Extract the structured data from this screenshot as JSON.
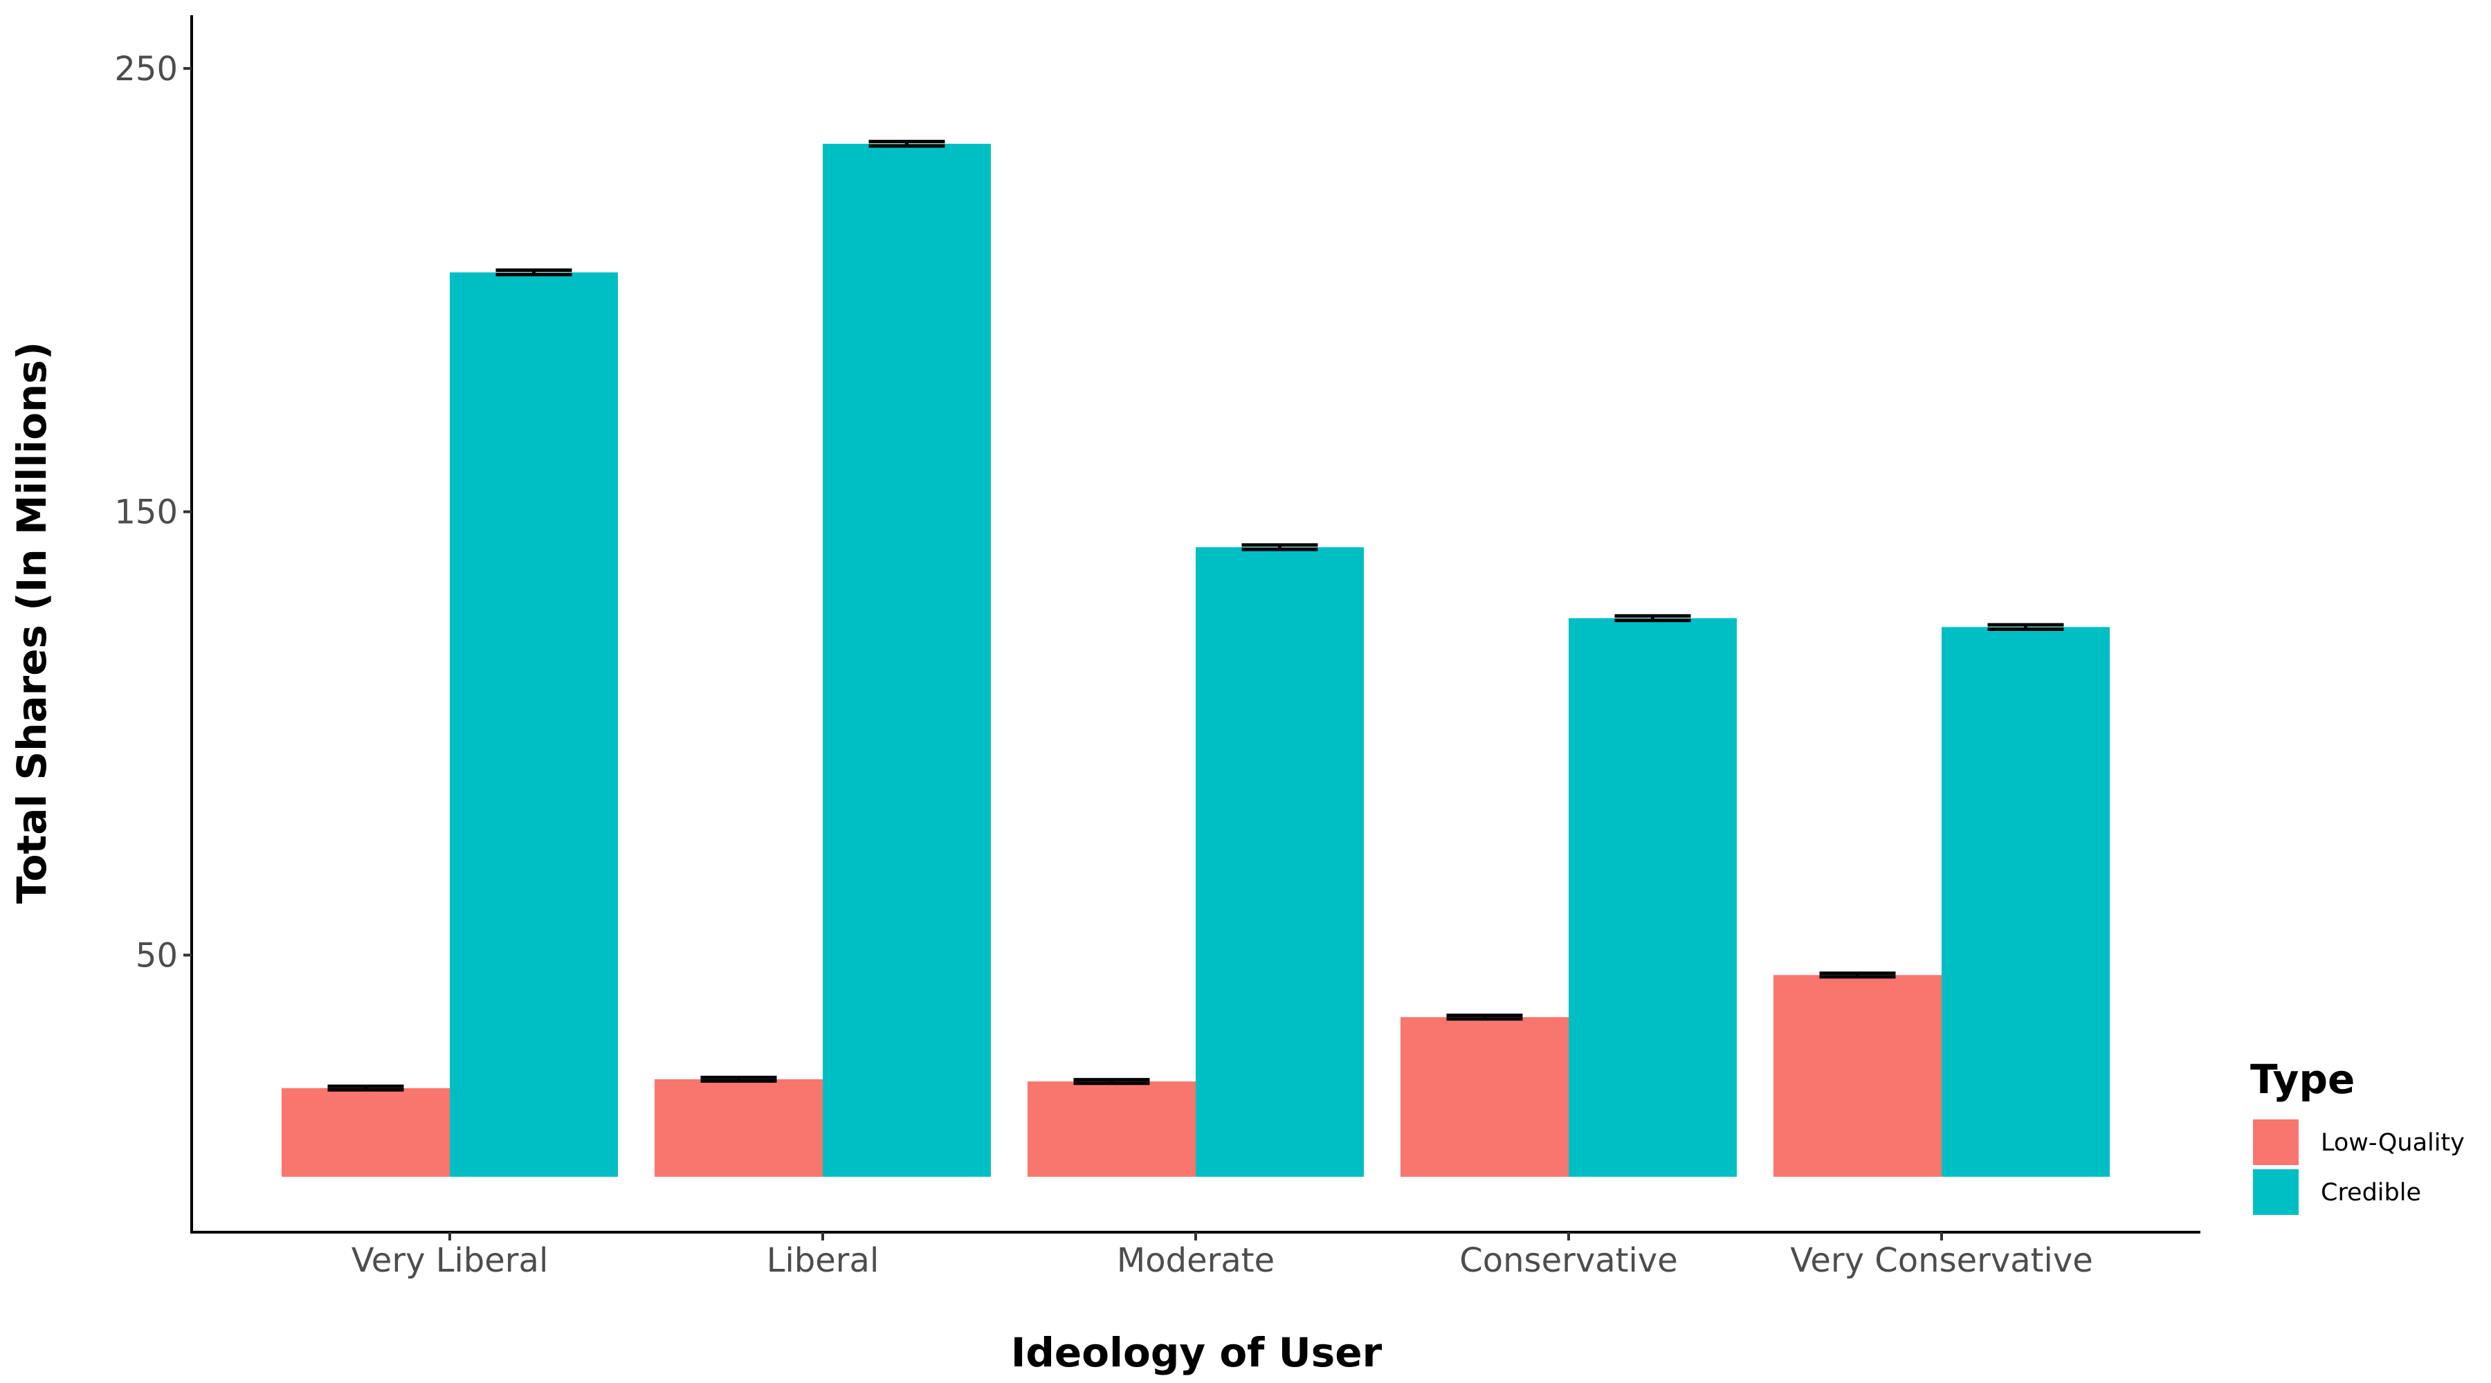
{
  "chart_data": {
    "type": "bar",
    "title": "",
    "xlabel": "Ideology of User",
    "ylabel": "Total Shares (In Millions)",
    "categories": [
      "Very Liberal",
      "Liberal",
      "Moderate",
      "Conservative",
      "Very Conservative"
    ],
    "series": [
      {
        "name": "Low-Quality",
        "color": "#F8766D",
        "values": [
          20,
          22,
          21.5,
          36,
          45.5
        ],
        "error_low": [
          19.6,
          21.6,
          21.1,
          35.6,
          45.1
        ],
        "error_high": [
          20.4,
          22.4,
          21.9,
          36.4,
          45.9
        ]
      },
      {
        "name": "Credible",
        "color": "#00BFC4",
        "values": [
          204,
          233,
          142,
          126,
          124
        ],
        "error_low": [
          203.5,
          232.5,
          141.5,
          125.5,
          123.5
        ],
        "error_high": [
          204.5,
          233.5,
          142.5,
          126.5,
          124.5
        ]
      }
    ],
    "yticks": [
      50,
      150,
      250
    ],
    "ylim": [
      -12.5,
      262
    ],
    "grid": false,
    "legend": {
      "title": "Type",
      "position": "right"
    }
  }
}
